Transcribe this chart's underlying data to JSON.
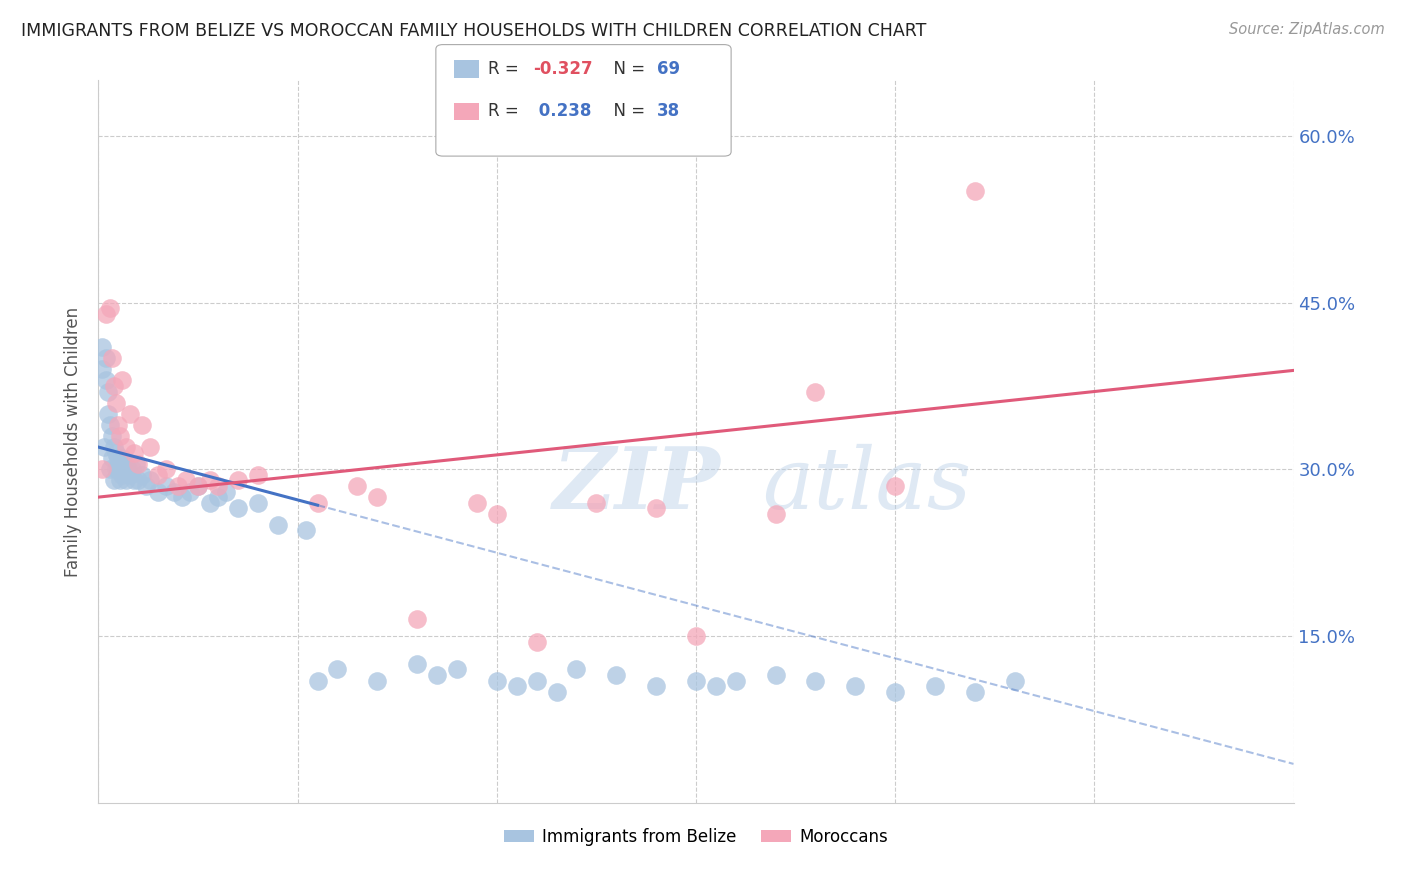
{
  "title": "IMMIGRANTS FROM BELIZE VS MOROCCAN FAMILY HOUSEHOLDS WITH CHILDREN CORRELATION CHART",
  "source": "Source: ZipAtlas.com",
  "ylabel": "Family Households with Children",
  "legend_blue_R": "-0.327",
  "legend_blue_N": "69",
  "legend_pink_R": "0.238",
  "legend_pink_N": "38",
  "legend_label_blue": "Immigrants from Belize",
  "legend_label_pink": "Moroccans",
  "xlim": [
    0.0,
    30.0
  ],
  "ylim": [
    0.0,
    65.0
  ],
  "yticks": [
    15.0,
    30.0,
    45.0,
    60.0
  ],
  "xticks": [
    0.0,
    5.0,
    10.0,
    15.0,
    20.0,
    25.0,
    30.0
  ],
  "blue_color": "#a8c4e0",
  "blue_line_color": "#4472c4",
  "pink_color": "#f4a7b9",
  "pink_line_color": "#e05a7a",
  "background_color": "#ffffff",
  "watermark_zip": "ZIP",
  "watermark_atlas": "atlas",
  "blue_points_x": [
    0.1,
    0.1,
    0.15,
    0.2,
    0.2,
    0.25,
    0.25,
    0.3,
    0.3,
    0.35,
    0.35,
    0.4,
    0.4,
    0.45,
    0.45,
    0.5,
    0.5,
    0.55,
    0.55,
    0.6,
    0.6,
    0.65,
    0.7,
    0.7,
    0.75,
    0.8,
    0.85,
    0.9,
    0.95,
    1.0,
    1.1,
    1.2,
    1.3,
    1.5,
    1.7,
    1.9,
    2.1,
    2.3,
    2.5,
    2.8,
    3.0,
    3.2,
    3.5,
    4.0,
    4.5,
    5.2,
    5.5,
    6.0,
    7.0,
    8.0,
    8.5,
    9.0,
    10.0,
    10.5,
    11.0,
    11.5,
    12.0,
    13.0,
    14.0,
    15.0,
    15.5,
    16.0,
    17.0,
    18.0,
    19.0,
    20.0,
    21.0,
    22.0,
    23.0
  ],
  "blue_points_y": [
    39.0,
    41.0,
    32.0,
    38.0,
    40.0,
    35.0,
    37.0,
    30.0,
    34.0,
    31.0,
    33.0,
    29.0,
    32.0,
    30.0,
    31.5,
    30.0,
    31.0,
    29.0,
    30.5,
    29.5,
    31.0,
    30.0,
    29.0,
    30.5,
    30.0,
    29.5,
    30.0,
    29.0,
    30.5,
    29.0,
    29.5,
    28.5,
    29.0,
    28.0,
    28.5,
    28.0,
    27.5,
    28.0,
    28.5,
    27.0,
    27.5,
    28.0,
    26.5,
    27.0,
    25.0,
    24.5,
    11.0,
    12.0,
    11.0,
    12.5,
    11.5,
    12.0,
    11.0,
    10.5,
    11.0,
    10.0,
    12.0,
    11.5,
    10.5,
    11.0,
    10.5,
    11.0,
    11.5,
    11.0,
    10.5,
    10.0,
    10.5,
    10.0,
    11.0
  ],
  "pink_points_x": [
    0.1,
    0.2,
    0.3,
    0.35,
    0.4,
    0.45,
    0.5,
    0.55,
    0.6,
    0.7,
    0.8,
    0.9,
    1.0,
    1.1,
    1.3,
    1.5,
    1.7,
    2.0,
    2.2,
    2.5,
    2.8,
    3.0,
    3.5,
    4.0,
    5.5,
    6.5,
    7.0,
    8.0,
    9.5,
    10.0,
    11.0,
    12.5,
    14.0,
    15.0,
    17.0,
    18.0,
    20.0,
    22.0
  ],
  "pink_points_y": [
    30.0,
    44.0,
    44.5,
    40.0,
    37.5,
    36.0,
    34.0,
    33.0,
    38.0,
    32.0,
    35.0,
    31.5,
    30.5,
    34.0,
    32.0,
    29.5,
    30.0,
    28.5,
    29.0,
    28.5,
    29.0,
    28.5,
    29.0,
    29.5,
    27.0,
    28.5,
    27.5,
    16.5,
    27.0,
    26.0,
    14.5,
    27.0,
    26.5,
    15.0,
    26.0,
    37.0,
    28.5,
    55.0
  ],
  "blue_solid_xrange": [
    0.0,
    5.5
  ],
  "blue_dash_xrange": [
    5.5,
    30.0
  ],
  "pink_solid_xrange": [
    0.0,
    30.0
  ],
  "blue_intercept": 32.0,
  "blue_slope": -0.95,
  "pink_intercept": 27.5,
  "pink_slope": 0.38
}
